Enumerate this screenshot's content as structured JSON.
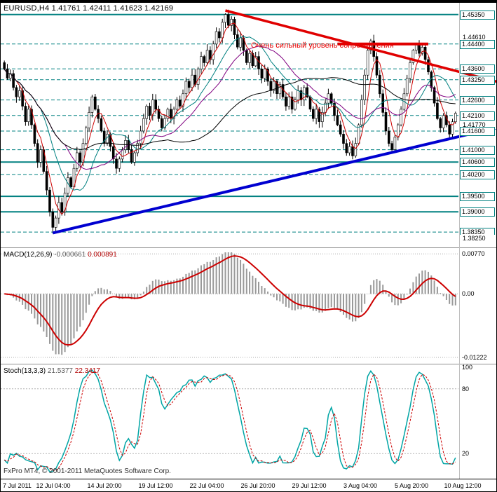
{
  "window": {
    "symbol": "EURUSD",
    "timeframe": "H4",
    "open": "1.41761",
    "high": "1.42411",
    "low": "1.41623",
    "close": "1.42169",
    "title": "EURUSD,H4 1.41761 1.42411 1.41623 1.42169"
  },
  "colors": {
    "background": "#ffffff",
    "foreground": "#000000",
    "level_teal": "#008080",
    "trend_red": "#e00000",
    "trend_blue": "#0000d0",
    "macd_histogram": "#999999",
    "macd_signal": "#cc0000",
    "stoch_main": "#00a5a5",
    "stoch_signal": "#cc0000",
    "annotation_red": "#e80000"
  },
  "macd_panel": {
    "name": "MACD(12,26,9)",
    "value_main": "-0.000661",
    "value_signal": "0.000891",
    "axis_labels": [
      {
        "text": "0.00770",
        "value": 0.0077
      },
      {
        "text": "0.00",
        "value": 0
      },
      {
        "text": "-0.01222",
        "value": -0.01222
      }
    ]
  },
  "stoch_panel": {
    "name": "Stoch(13,3,3)",
    "value_main": "21.5377",
    "value_signal": "22.3417",
    "axis_labels": [
      {
        "text": "100",
        "value": 100
      },
      {
        "text": "80",
        "value": 80
      },
      {
        "text": "20",
        "value": 20
      }
    ]
  },
  "footer": {
    "copyright": "FxPro MT4, © 2001-2011 MetaQuotes Software Corp."
  },
  "chart_data": [
    {
      "type": "candlestick",
      "title": "EURUSD,H4",
      "annotation": "Очень сильный уровень сопротивления",
      "ylim": [
        1.379,
        1.4575
      ],
      "x_tick_labels": [
        "7 Jul 2011",
        "12 Jul 04:00",
        "14 Jul 20:00",
        "19 Jul 12:00",
        "22 Jul 04:00",
        "26 Jul 20:00",
        "29 Jul 12:00",
        "3 Aug 04:00",
        "5 Aug 20:00",
        "10 Aug 12:00"
      ],
      "closes": [
        1.436,
        1.433,
        1.4345,
        1.43,
        1.427,
        1.429,
        1.424,
        1.419,
        1.423,
        1.418,
        1.412,
        1.406,
        1.41,
        1.403,
        1.397,
        1.39,
        1.385,
        1.388,
        1.393,
        1.39,
        1.396,
        1.401,
        1.398,
        1.404,
        1.409,
        1.406,
        1.412,
        1.417,
        1.422,
        1.427,
        1.423,
        1.42,
        1.416,
        1.412,
        1.415,
        1.411,
        1.407,
        1.404,
        1.407,
        1.41,
        1.413,
        1.41,
        1.406,
        1.409,
        1.412,
        1.416,
        1.42,
        1.424,
        1.421,
        1.426,
        1.423,
        1.42,
        1.417,
        1.42,
        1.423,
        1.42,
        1.423,
        1.426,
        1.424,
        1.428,
        1.432,
        1.43,
        1.434,
        1.431,
        1.436,
        1.44,
        1.438,
        1.442,
        1.439,
        1.444,
        1.448,
        1.446,
        1.451,
        1.4535,
        1.45,
        1.452,
        1.447,
        1.443,
        1.446,
        1.442,
        1.438,
        1.441,
        1.437,
        1.44,
        1.436,
        1.433,
        1.436,
        1.432,
        1.429,
        1.432,
        1.428,
        1.431,
        1.427,
        1.424,
        1.427,
        1.423,
        1.426,
        1.429,
        1.426,
        1.43,
        1.427,
        1.423,
        1.42,
        1.423,
        1.419,
        1.422,
        1.425,
        1.428,
        1.425,
        1.421,
        1.418,
        1.415,
        1.412,
        1.409,
        1.411,
        1.408,
        1.412,
        1.418,
        1.426,
        1.434,
        1.442,
        1.445,
        1.44,
        1.434,
        1.428,
        1.422,
        1.416,
        1.412,
        1.41,
        1.414,
        1.418,
        1.423,
        1.428,
        1.433,
        1.438,
        1.442,
        1.444,
        1.441,
        1.443,
        1.439,
        1.435,
        1.43,
        1.425,
        1.42,
        1.417,
        1.421,
        1.418,
        1.415,
        1.419,
        1.4217
      ],
      "moving_averages": [
        {
          "period": 5,
          "color": "#cc0000"
        },
        {
          "period": 13,
          "color": "#008080"
        },
        {
          "period": 21,
          "color": "#800080"
        },
        {
          "period": 55,
          "color": "#000000"
        }
      ],
      "levels": [
        {
          "label": "1.45350",
          "price": 1.4535,
          "style": "solid"
        },
        {
          "label": "1.44610",
          "price": 1.4461,
          "style": "tick"
        },
        {
          "label": "1.44400",
          "price": 1.444,
          "style": "dashed"
        },
        {
          "label": "1.43600",
          "price": 1.436,
          "style": "dashed"
        },
        {
          "label": "1.43250",
          "price": 1.4325,
          "style": "dashed"
        },
        {
          "label": "1.42600",
          "price": 1.426,
          "style": "dashed"
        },
        {
          "label": "1.42100",
          "price": 1.421,
          "style": "dashed"
        },
        {
          "label": "1.41770",
          "price": 1.4177,
          "style": "tick"
        },
        {
          "label": "1.41600",
          "price": 1.416,
          "style": "dashed"
        },
        {
          "label": "1.41000",
          "price": 1.41,
          "style": "dashed"
        },
        {
          "label": "1.40600",
          "price": 1.406,
          "style": "solid"
        },
        {
          "label": "1.40200",
          "price": 1.402,
          "style": "dashed"
        },
        {
          "label": "1.39500",
          "price": 1.395,
          "style": "solid"
        },
        {
          "label": "1.39000",
          "price": 1.39,
          "style": "solid"
        },
        {
          "label": "1.38350",
          "price": 1.3835,
          "style": "dashed"
        },
        {
          "label": "1.38250",
          "price": 1.3825,
          "style": "tick",
          "dy": 6
        }
      ],
      "trendlines": [
        {
          "name": "descending-resistance-trendline",
          "i1": 73,
          "p1": 1.4548,
          "i2": 163,
          "p2": 1.4318,
          "color": "#e00000",
          "width": 3.5
        },
        {
          "name": "ascending-support-trendline",
          "i1": 16,
          "p1": 1.3832,
          "i2": 163,
          "p2": 1.4172,
          "color": "#0000d0",
          "width": 4
        }
      ],
      "hline_segment": {
        "name": "resistance-zone-line",
        "i1": 110,
        "i2": 140,
        "price": 1.444,
        "color": "#e00000",
        "width": 4
      }
    },
    {
      "type": "macd",
      "params": [
        12,
        26,
        9
      ],
      "current_macd": -0.000661,
      "current_signal": 0.000891,
      "ylim": [
        -0.0125,
        0.008
      ],
      "level_lines": [
        0.0077,
        0,
        -0.01222
      ]
    },
    {
      "type": "stochastic",
      "params": [
        13,
        3,
        3
      ],
      "current_k": 21.5377,
      "current_d": 22.3417,
      "ylim": [
        0,
        100
      ],
      "level_lines": [
        80,
        20
      ]
    }
  ]
}
